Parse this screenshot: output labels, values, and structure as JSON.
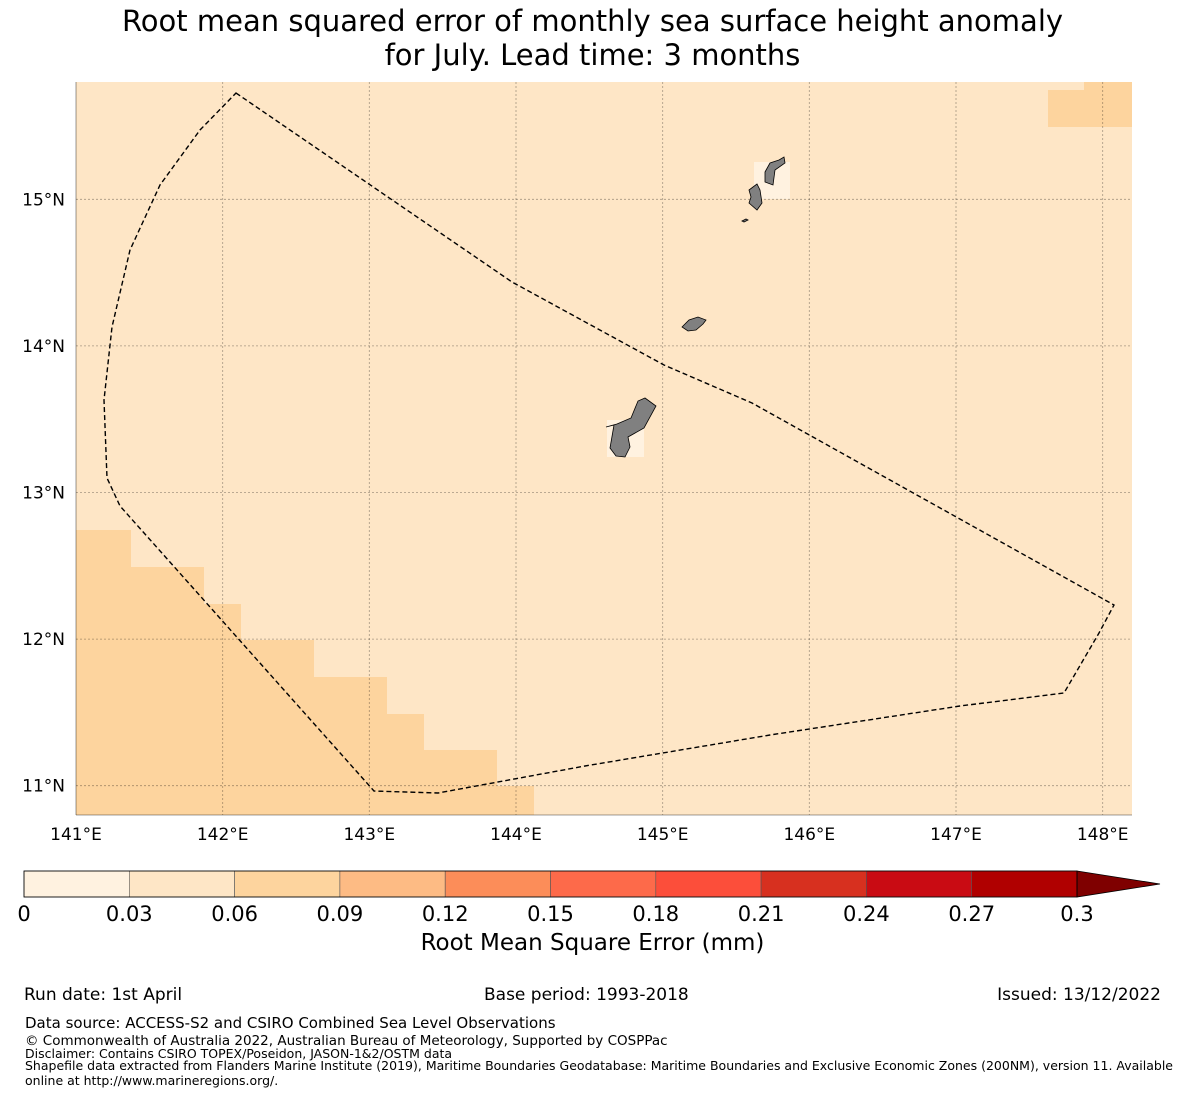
{
  "title": {
    "line1": "Root mean squared error of monthly sea surface height anomaly",
    "line2": "for July. Lead time: 3 months"
  },
  "map": {
    "lon_range": [
      141.0,
      148.2
    ],
    "lat_range": [
      10.8,
      15.8
    ],
    "lon_ticks": [
      141,
      142,
      143,
      144,
      145,
      146,
      147,
      148
    ],
    "lat_ticks": [
      11,
      12,
      13,
      14,
      15
    ],
    "lon_tick_labels": [
      "141°E",
      "142°E",
      "143°E",
      "144°E",
      "145°E",
      "146°E",
      "147°E",
      "148°E"
    ],
    "lat_tick_labels": [
      "11°N",
      "12°N",
      "13°N",
      "14°N",
      "15°N"
    ],
    "background_color": "#fee6c6",
    "higher_error_color": "#fdd49e",
    "lowest_error_color": "#fff2e0",
    "land_color": "#808080",
    "boundary_style": "dashed",
    "grid": true
  },
  "colorbar": {
    "title": "Root Mean Square Error (mm)",
    "tick_labels": [
      "0",
      "0.03",
      "0.06",
      "0.09",
      "0.12",
      "0.15",
      "0.18",
      "0.21",
      "0.24",
      "0.27",
      "0.3"
    ],
    "colors": [
      "#fff2e0",
      "#fee6c6",
      "#fdd49e",
      "#fdbb84",
      "#fc8d59",
      "#fd6a4a",
      "#fc4e3a",
      "#d7301f",
      "#c90b13",
      "#b00000",
      "#7f0000"
    ],
    "extend": "max"
  },
  "footer": {
    "run_date": "Run date: 1st April",
    "base_period": "Base period: 1993-2018",
    "issued": "Issued: 13/12/2022",
    "data_source": "Data source: ACCESS-S2 and CSIRO Combined Sea Level Observations",
    "copyright": "© Commonwealth of Australia 2022, Australian Bureau of Meteorology, Supported by COSPPac",
    "disclaimer": "Disclaimer: Contains CSIRO TOPEX/Poseidon, JASON-1&2/OSTM data",
    "shapefile": "Shapefile data extracted from Flanders Marine Institute (2019), Maritime Boundaries Geodatabase: Maritime Boundaries and Exclusive Economic Zones (200NM), version 11. Available online at http://www.marineregions.org/."
  }
}
